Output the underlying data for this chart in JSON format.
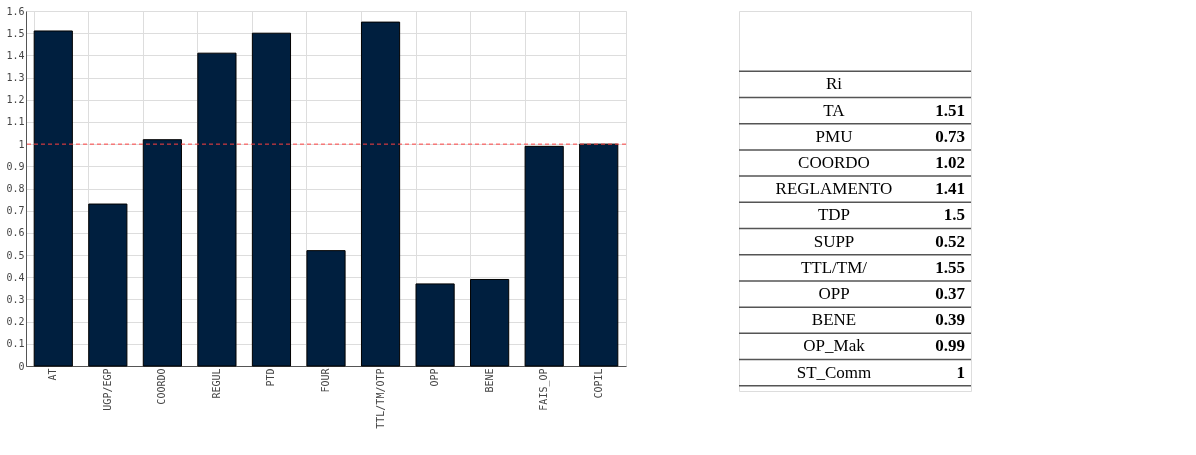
{
  "chart_data": [
    {
      "type": "bar",
      "categories": [
        "AT",
        "UGP/EGP",
        "COORDO",
        "REGUL",
        "PTD",
        "FOUR",
        "TTL/TM/OTP",
        "OPP",
        "BENE",
        "FAIS_OP",
        "COPIL"
      ],
      "series": [
        {
          "color": "#001f3f",
          "values": [
            1.51,
            0.73,
            1.02,
            1.41,
            1.5,
            0.52,
            1.55,
            0.37,
            0.39,
            0.99,
            1
          ]
        }
      ],
      "ylim": [
        0,
        1.6
      ],
      "yticks": [
        0,
        0.1,
        0.2,
        0.3,
        0.4,
        0.5,
        0.6,
        0.7,
        0.8,
        0.9,
        1,
        1.1,
        1.2,
        1.3,
        1.4,
        1.5,
        1.6
      ],
      "grid": true,
      "ref_lines": [
        {
          "axis": "y",
          "value": 1,
          "color": "#ff4040",
          "line_style": "dashed"
        }
      ]
    },
    {
      "type": "other",
      "title": "Ri",
      "categories": [
        "TA",
        "PMU",
        "COORDO",
        "REGLAMENTO",
        "TDP",
        "SUPP",
        "TTL/TM/",
        "OPP",
        "BENE",
        "OP_Mak",
        "ST_Comm"
      ],
      "values": [
        1.51,
        0.73,
        1.02,
        1.41,
        1.5,
        0.52,
        1.55,
        0.37,
        0.39,
        0.99,
        1
      ],
      "data_labels": true
    }
  ]
}
